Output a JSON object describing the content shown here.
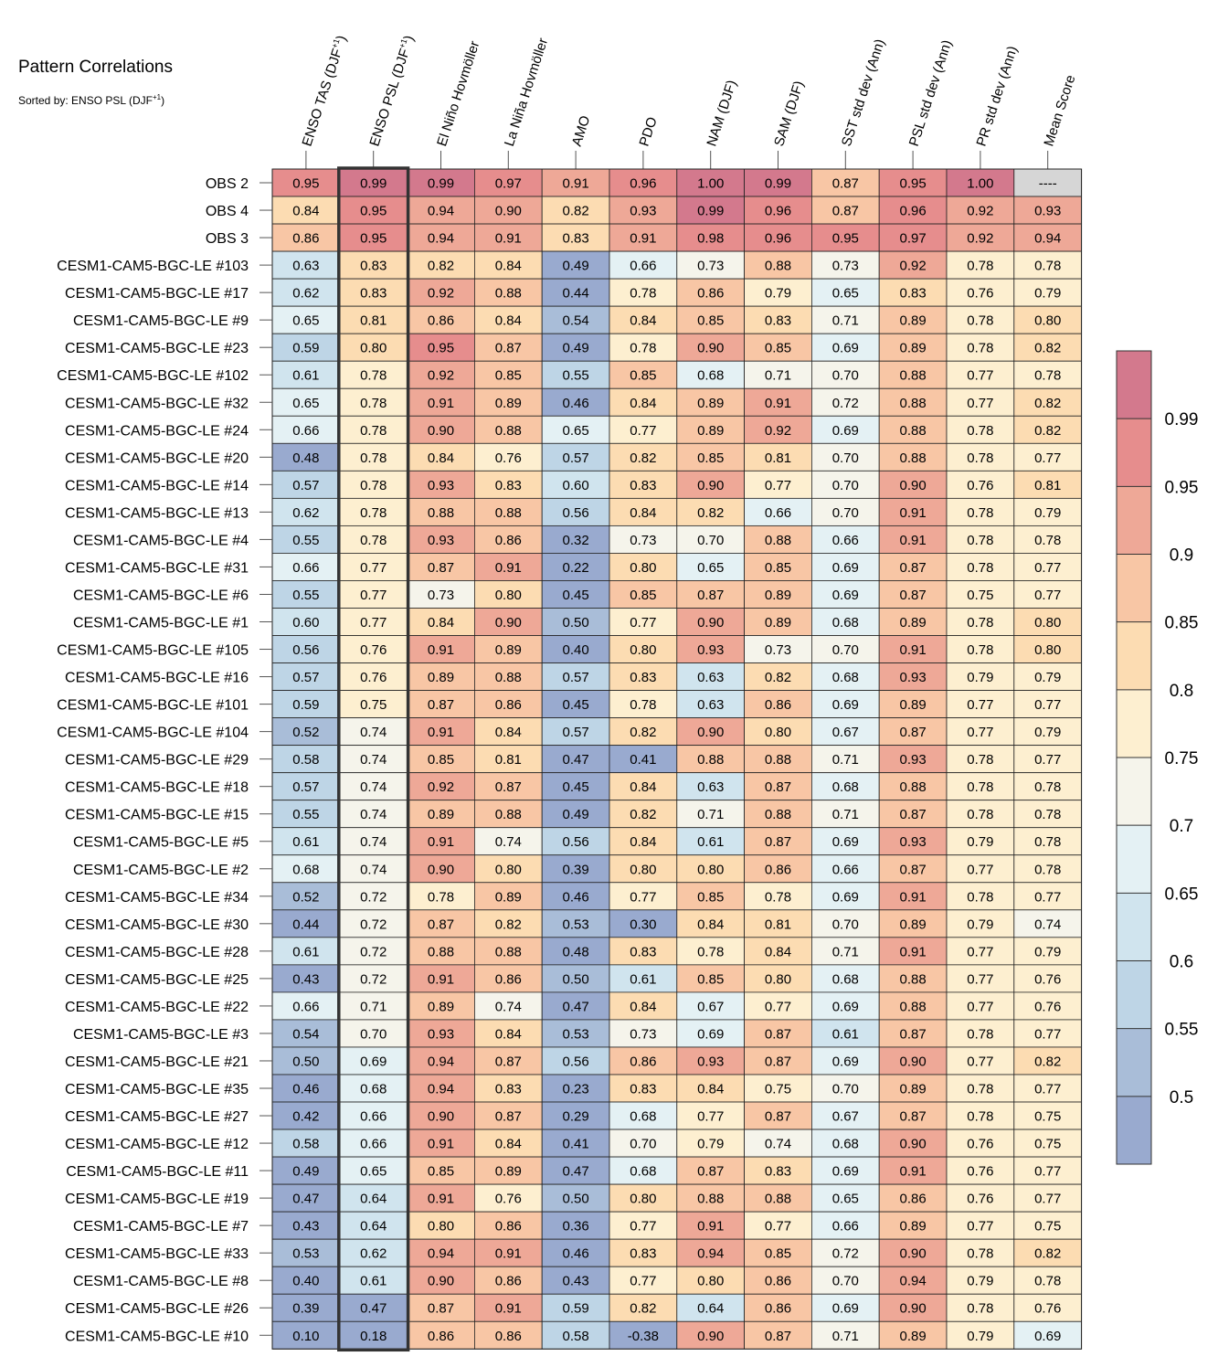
{
  "chart_data": {
    "type": "heatmap",
    "title": "Pattern Correlations",
    "subtitle_prefix": "Sorted by: ENSO PSL (DJF",
    "subtitle_sup": "+1",
    "subtitle_suffix": ")",
    "sorted_column": 1,
    "missing_text": "----",
    "columns": [
      {
        "label": "ENSO TAS (DJF",
        "sup": "+1",
        "suffix": ")"
      },
      {
        "label": "ENSO PSL (DJF",
        "sup": "+1",
        "suffix": ")"
      },
      {
        "label": "El Niño Hovmöller",
        "sup": "",
        "suffix": ""
      },
      {
        "label": "La Niña Hovmöller",
        "sup": "",
        "suffix": ""
      },
      {
        "label": "AMO",
        "sup": "",
        "suffix": ""
      },
      {
        "label": "PDO",
        "sup": "",
        "suffix": ""
      },
      {
        "label": "NAM (DJF)",
        "sup": "",
        "suffix": ""
      },
      {
        "label": "SAM (DJF)",
        "sup": "",
        "suffix": ""
      },
      {
        "label": "SST std dev (Ann)",
        "sup": "",
        "suffix": ""
      },
      {
        "label": "PSL std dev (Ann)",
        "sup": "",
        "suffix": ""
      },
      {
        "label": "PR std dev (Ann)",
        "sup": "",
        "suffix": ""
      },
      {
        "label": "Mean Score",
        "sup": "",
        "suffix": ""
      }
    ],
    "rows": [
      {
        "name": "OBS 2",
        "values": [
          0.95,
          0.99,
          0.99,
          0.97,
          0.91,
          0.96,
          1.0,
          0.99,
          0.87,
          0.95,
          1.0,
          null
        ]
      },
      {
        "name": "OBS 4",
        "values": [
          0.84,
          0.95,
          0.94,
          0.9,
          0.82,
          0.93,
          0.99,
          0.96,
          0.87,
          0.96,
          0.92,
          0.93
        ]
      },
      {
        "name": "OBS 3",
        "values": [
          0.86,
          0.95,
          0.94,
          0.91,
          0.83,
          0.91,
          0.98,
          0.96,
          0.95,
          0.97,
          0.92,
          0.94
        ]
      },
      {
        "name": "CESM1-CAM5-BGC-LE #103",
        "values": [
          0.63,
          0.83,
          0.82,
          0.84,
          0.49,
          0.66,
          0.73,
          0.88,
          0.73,
          0.92,
          0.78,
          0.78
        ]
      },
      {
        "name": "CESM1-CAM5-BGC-LE #17",
        "values": [
          0.62,
          0.83,
          0.92,
          0.88,
          0.44,
          0.78,
          0.86,
          0.79,
          0.65,
          0.83,
          0.76,
          0.79
        ]
      },
      {
        "name": "CESM1-CAM5-BGC-LE #9",
        "values": [
          0.65,
          0.81,
          0.86,
          0.84,
          0.54,
          0.84,
          0.85,
          0.83,
          0.71,
          0.89,
          0.78,
          0.8
        ]
      },
      {
        "name": "CESM1-CAM5-BGC-LE #23",
        "values": [
          0.59,
          0.8,
          0.95,
          0.87,
          0.49,
          0.78,
          0.9,
          0.85,
          0.69,
          0.89,
          0.78,
          0.82
        ]
      },
      {
        "name": "CESM1-CAM5-BGC-LE #102",
        "values": [
          0.61,
          0.78,
          0.92,
          0.85,
          0.55,
          0.85,
          0.68,
          0.71,
          0.7,
          0.88,
          0.77,
          0.78
        ]
      },
      {
        "name": "CESM1-CAM5-BGC-LE #32",
        "values": [
          0.65,
          0.78,
          0.91,
          0.89,
          0.46,
          0.84,
          0.89,
          0.91,
          0.72,
          0.88,
          0.77,
          0.82
        ]
      },
      {
        "name": "CESM1-CAM5-BGC-LE #24",
        "values": [
          0.66,
          0.78,
          0.9,
          0.88,
          0.65,
          0.77,
          0.89,
          0.92,
          0.69,
          0.88,
          0.78,
          0.82
        ]
      },
      {
        "name": "CESM1-CAM5-BGC-LE #20",
        "values": [
          0.48,
          0.78,
          0.84,
          0.76,
          0.57,
          0.82,
          0.85,
          0.81,
          0.7,
          0.88,
          0.78,
          0.77
        ]
      },
      {
        "name": "CESM1-CAM5-BGC-LE #14",
        "values": [
          0.57,
          0.78,
          0.93,
          0.83,
          0.6,
          0.83,
          0.9,
          0.77,
          0.7,
          0.9,
          0.76,
          0.81
        ]
      },
      {
        "name": "CESM1-CAM5-BGC-LE #13",
        "values": [
          0.62,
          0.78,
          0.88,
          0.88,
          0.56,
          0.84,
          0.82,
          0.66,
          0.7,
          0.91,
          0.78,
          0.79
        ]
      },
      {
        "name": "CESM1-CAM5-BGC-LE #4",
        "values": [
          0.55,
          0.78,
          0.93,
          0.86,
          0.32,
          0.73,
          0.7,
          0.88,
          0.66,
          0.91,
          0.78,
          0.78
        ]
      },
      {
        "name": "CESM1-CAM5-BGC-LE #31",
        "values": [
          0.66,
          0.77,
          0.87,
          0.91,
          0.22,
          0.8,
          0.65,
          0.85,
          0.69,
          0.87,
          0.78,
          0.77
        ]
      },
      {
        "name": "CESM1-CAM5-BGC-LE #6",
        "values": [
          0.55,
          0.77,
          0.73,
          0.8,
          0.45,
          0.85,
          0.87,
          0.89,
          0.69,
          0.87,
          0.75,
          0.77
        ]
      },
      {
        "name": "CESM1-CAM5-BGC-LE #1",
        "values": [
          0.6,
          0.77,
          0.84,
          0.9,
          0.5,
          0.77,
          0.9,
          0.89,
          0.68,
          0.89,
          0.78,
          0.8
        ]
      },
      {
        "name": "CESM1-CAM5-BGC-LE #105",
        "values": [
          0.56,
          0.76,
          0.91,
          0.89,
          0.4,
          0.8,
          0.93,
          0.73,
          0.7,
          0.91,
          0.78,
          0.8
        ]
      },
      {
        "name": "CESM1-CAM5-BGC-LE #16",
        "values": [
          0.57,
          0.76,
          0.89,
          0.88,
          0.57,
          0.83,
          0.63,
          0.82,
          0.68,
          0.93,
          0.79,
          0.79
        ]
      },
      {
        "name": "CESM1-CAM5-BGC-LE #101",
        "values": [
          0.59,
          0.75,
          0.87,
          0.86,
          0.45,
          0.78,
          0.63,
          0.86,
          0.69,
          0.89,
          0.77,
          0.77
        ]
      },
      {
        "name": "CESM1-CAM5-BGC-LE #104",
        "values": [
          0.52,
          0.74,
          0.91,
          0.84,
          0.57,
          0.82,
          0.9,
          0.8,
          0.67,
          0.87,
          0.77,
          0.79
        ]
      },
      {
        "name": "CESM1-CAM5-BGC-LE #29",
        "values": [
          0.58,
          0.74,
          0.85,
          0.81,
          0.47,
          0.41,
          0.88,
          0.88,
          0.71,
          0.93,
          0.78,
          0.77
        ]
      },
      {
        "name": "CESM1-CAM5-BGC-LE #18",
        "values": [
          0.57,
          0.74,
          0.92,
          0.87,
          0.45,
          0.84,
          0.63,
          0.87,
          0.68,
          0.88,
          0.78,
          0.78
        ]
      },
      {
        "name": "CESM1-CAM5-BGC-LE #15",
        "values": [
          0.55,
          0.74,
          0.89,
          0.88,
          0.49,
          0.82,
          0.71,
          0.88,
          0.71,
          0.87,
          0.78,
          0.78
        ]
      },
      {
        "name": "CESM1-CAM5-BGC-LE #5",
        "values": [
          0.61,
          0.74,
          0.91,
          0.74,
          0.56,
          0.84,
          0.61,
          0.87,
          0.69,
          0.93,
          0.79,
          0.78
        ]
      },
      {
        "name": "CESM1-CAM5-BGC-LE #2",
        "values": [
          0.68,
          0.74,
          0.9,
          0.8,
          0.39,
          0.8,
          0.8,
          0.86,
          0.66,
          0.87,
          0.77,
          0.78
        ]
      },
      {
        "name": "CESM1-CAM5-BGC-LE #34",
        "values": [
          0.52,
          0.72,
          0.78,
          0.89,
          0.46,
          0.77,
          0.85,
          0.78,
          0.69,
          0.91,
          0.78,
          0.77
        ]
      },
      {
        "name": "CESM1-CAM5-BGC-LE #30",
        "values": [
          0.44,
          0.72,
          0.87,
          0.82,
          0.53,
          0.3,
          0.84,
          0.81,
          0.7,
          0.89,
          0.79,
          0.74
        ]
      },
      {
        "name": "CESM1-CAM5-BGC-LE #28",
        "values": [
          0.61,
          0.72,
          0.88,
          0.88,
          0.48,
          0.83,
          0.78,
          0.84,
          0.71,
          0.91,
          0.77,
          0.79
        ]
      },
      {
        "name": "CESM1-CAM5-BGC-LE #25",
        "values": [
          0.43,
          0.72,
          0.91,
          0.86,
          0.5,
          0.61,
          0.85,
          0.8,
          0.68,
          0.88,
          0.77,
          0.76
        ]
      },
      {
        "name": "CESM1-CAM5-BGC-LE #22",
        "values": [
          0.66,
          0.71,
          0.89,
          0.74,
          0.47,
          0.84,
          0.67,
          0.77,
          0.69,
          0.88,
          0.77,
          0.76
        ]
      },
      {
        "name": "CESM1-CAM5-BGC-LE #3",
        "values": [
          0.54,
          0.7,
          0.93,
          0.84,
          0.53,
          0.73,
          0.69,
          0.87,
          0.61,
          0.87,
          0.78,
          0.77
        ]
      },
      {
        "name": "CESM1-CAM5-BGC-LE #21",
        "values": [
          0.5,
          0.69,
          0.94,
          0.87,
          0.56,
          0.86,
          0.93,
          0.87,
          0.69,
          0.9,
          0.77,
          0.82
        ]
      },
      {
        "name": "CESM1-CAM5-BGC-LE #35",
        "values": [
          0.46,
          0.68,
          0.94,
          0.83,
          0.23,
          0.83,
          0.84,
          0.75,
          0.7,
          0.89,
          0.78,
          0.77
        ]
      },
      {
        "name": "CESM1-CAM5-BGC-LE #27",
        "values": [
          0.42,
          0.66,
          0.9,
          0.87,
          0.29,
          0.68,
          0.77,
          0.87,
          0.67,
          0.87,
          0.78,
          0.75
        ]
      },
      {
        "name": "CESM1-CAM5-BGC-LE #12",
        "values": [
          0.58,
          0.66,
          0.91,
          0.84,
          0.41,
          0.7,
          0.79,
          0.74,
          0.68,
          0.9,
          0.76,
          0.75
        ]
      },
      {
        "name": "CESM1-CAM5-BGC-LE #11",
        "values": [
          0.49,
          0.65,
          0.85,
          0.89,
          0.47,
          0.68,
          0.87,
          0.83,
          0.69,
          0.91,
          0.76,
          0.77
        ]
      },
      {
        "name": "CESM1-CAM5-BGC-LE #19",
        "values": [
          0.47,
          0.64,
          0.91,
          0.76,
          0.5,
          0.8,
          0.88,
          0.88,
          0.65,
          0.86,
          0.76,
          0.77
        ]
      },
      {
        "name": "CESM1-CAM5-BGC-LE #7",
        "values": [
          0.43,
          0.64,
          0.8,
          0.86,
          0.36,
          0.77,
          0.91,
          0.77,
          0.66,
          0.89,
          0.77,
          0.75
        ]
      },
      {
        "name": "CESM1-CAM5-BGC-LE #33",
        "values": [
          0.53,
          0.62,
          0.94,
          0.91,
          0.46,
          0.83,
          0.94,
          0.85,
          0.72,
          0.9,
          0.78,
          0.82
        ]
      },
      {
        "name": "CESM1-CAM5-BGC-LE #8",
        "values": [
          0.4,
          0.61,
          0.9,
          0.86,
          0.43,
          0.77,
          0.8,
          0.86,
          0.7,
          0.94,
          0.79,
          0.78
        ]
      },
      {
        "name": "CESM1-CAM5-BGC-LE #26",
        "values": [
          0.39,
          0.47,
          0.87,
          0.91,
          0.59,
          0.82,
          0.64,
          0.86,
          0.69,
          0.9,
          0.78,
          0.76
        ]
      },
      {
        "name": "CESM1-CAM5-BGC-LE #10",
        "values": [
          0.1,
          0.18,
          0.86,
          0.86,
          0.58,
          -0.38,
          0.9,
          0.87,
          0.71,
          0.89,
          0.79,
          0.69
        ]
      }
    ],
    "colorbar": {
      "levels": [
        0.5,
        0.55,
        0.6,
        0.65,
        0.7,
        0.75,
        0.8,
        0.85,
        0.9,
        0.95,
        0.99
      ],
      "labels": [
        "0.5",
        "0.55",
        "0.6",
        "0.65",
        "0.7",
        "0.75",
        "0.8",
        "0.85",
        "0.9",
        "0.95",
        "0.99"
      ],
      "colors": [
        "#99aacf",
        "#a9bdd8",
        "#bed5e6",
        "#d0e4ee",
        "#e4f1f4",
        "#f5f4eb",
        "#fdefd0",
        "#fcdcb2",
        "#f8c6a5",
        "#eea897",
        "#e68d8d",
        "#d3798d"
      ],
      "missing_color": "#d6d6d6"
    }
  }
}
